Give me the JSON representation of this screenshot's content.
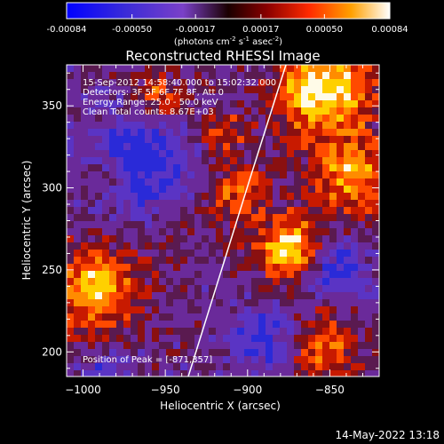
{
  "chart_data": {
    "type": "heatmap",
    "title": "Reconstructed RHESSI Image",
    "colorbar": {
      "ticks": [
        "-0.00084",
        "-0.00050",
        "-0.00017",
        "0.00017",
        "0.00050",
        "0.00084"
      ],
      "range": [
        -0.00084,
        0.00084
      ],
      "units_prefix": "(photons cm",
      "units_exp1": "-2",
      "units_mid": " s",
      "units_exp2": "-1",
      "units_mid2": " asec",
      "units_exp3": "-2",
      "units_suffix": ")"
    },
    "annotations": {
      "line1": "15-Sep-2012 14:58:40.000 to 15:02:32.000",
      "line2": "Detectors: 3F 5F 6F 7F 8F, Att 0",
      "line3": "Energy Range: 25.0 - 50.0 keV",
      "line4": "Clean     Total counts: 8.67E+03",
      "peak": "Position of Peak = [-871,357]"
    },
    "xlabel": "Heliocentric X (arcsec)",
    "ylabel": "Heliocentric Y (arcsec)",
    "xlim": [
      -1010,
      -820
    ],
    "ylim": [
      185,
      375
    ],
    "xticks": [
      -1000,
      -950,
      -900,
      -850
    ],
    "yticks": [
      200,
      250,
      300,
      350
    ],
    "peak": [
      -871,
      357
    ]
  },
  "footer": {
    "timestamp": "14-May-2022 13:18"
  }
}
